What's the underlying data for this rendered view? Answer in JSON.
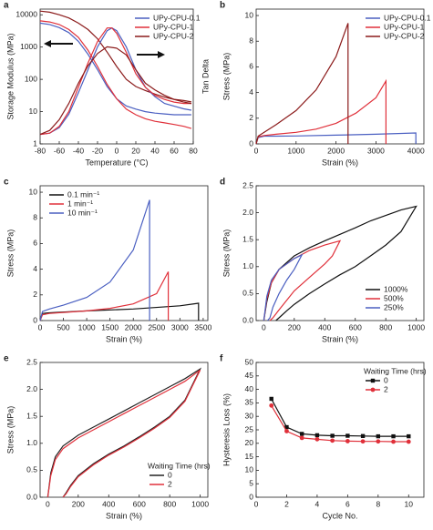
{
  "chart_data": [
    {
      "type": "line",
      "label": "a",
      "xlabel": "Temperature (°C)",
      "ylabel": "Storage Modulus (MPa)",
      "y2label": "Tan Delta",
      "xlim": [
        -80,
        80
      ],
      "xticks": [
        -80,
        -60,
        -40,
        -20,
        0,
        20,
        40,
        60,
        80
      ],
      "ylim": [
        1,
        15000
      ],
      "yticks": [
        1,
        10,
        100,
        1000,
        10000
      ],
      "log": true,
      "y2lim": [
        0,
        1
      ],
      "legend": "upper right",
      "series": [
        {
          "name": "UPy-CPU-0.1",
          "color": "#4a5fc1",
          "x": [
            -80,
            -70,
            -60,
            -50,
            -40,
            -30,
            -20,
            -10,
            0,
            10,
            20,
            30,
            40,
            50,
            60,
            70,
            78
          ],
          "values": [
            5500,
            5000,
            4000,
            2800,
            1500,
            600,
            200,
            60,
            25,
            15,
            12,
            10,
            9,
            8.5,
            8,
            8,
            8
          ]
        },
        {
          "name": "UPy-CPU-1",
          "color": "#e0303a",
          "x": [
            -80,
            -70,
            -60,
            -50,
            -40,
            -30,
            -20,
            -10,
            0,
            10,
            20,
            30,
            40,
            50,
            60,
            70,
            78
          ],
          "values": [
            6500,
            6000,
            5000,
            3500,
            2000,
            800,
            250,
            70,
            25,
            12,
            8,
            6,
            5,
            4.5,
            4,
            3.5,
            3
          ]
        },
        {
          "name": "UPy-CPU-2",
          "color": "#8b1a1a",
          "x": [
            -80,
            -70,
            -60,
            -50,
            -40,
            -30,
            -20,
            -10,
            0,
            10,
            20,
            30,
            40,
            50,
            60,
            70,
            78
          ],
          "values": [
            13000,
            12000,
            10000,
            8000,
            5500,
            3500,
            1800,
            700,
            250,
            100,
            60,
            45,
            35,
            28,
            24,
            22,
            20
          ]
        },
        {
          "color": "#4a5fc1",
          "axis": "y2",
          "x": [
            -80,
            -70,
            -60,
            -50,
            -40,
            -30,
            -20,
            -10,
            -5,
            0,
            10,
            20,
            30,
            40,
            50,
            60,
            70,
            78
          ],
          "values": [
            0.07,
            0.08,
            0.12,
            0.22,
            0.38,
            0.55,
            0.72,
            0.84,
            0.86,
            0.84,
            0.72,
            0.55,
            0.42,
            0.35,
            0.3,
            0.28,
            0.26,
            0.25
          ]
        },
        {
          "color": "#e0303a",
          "axis": "y2",
          "x": [
            -80,
            -70,
            -60,
            -50,
            -40,
            -30,
            -20,
            -10,
            -5,
            0,
            10,
            20,
            30,
            40,
            50,
            60,
            70,
            78
          ],
          "values": [
            0.07,
            0.08,
            0.13,
            0.24,
            0.42,
            0.6,
            0.76,
            0.86,
            0.86,
            0.82,
            0.68,
            0.52,
            0.42,
            0.36,
            0.33,
            0.31,
            0.3,
            0.3
          ]
        },
        {
          "color": "#8b1a1a",
          "axis": "y2",
          "x": [
            -80,
            -70,
            -60,
            -50,
            -40,
            -30,
            -20,
            -10,
            0,
            10,
            20,
            30,
            40,
            50,
            60,
            70,
            78
          ],
          "values": [
            0.07,
            0.1,
            0.18,
            0.3,
            0.45,
            0.58,
            0.67,
            0.72,
            0.71,
            0.66,
            0.55,
            0.45,
            0.4,
            0.36,
            0.33,
            0.31,
            0.3
          ]
        }
      ]
    },
    {
      "type": "line",
      "label": "b",
      "xlabel": "Strain (%)",
      "ylabel": "Stress (MPa)",
      "xlim": [
        0,
        4200
      ],
      "xticks": [
        0,
        1000,
        2000,
        3000,
        4000
      ],
      "ylim": [
        0,
        10.5
      ],
      "yticks": [
        0,
        2,
        4,
        6,
        8,
        10
      ],
      "legend": "upper right",
      "series": [
        {
          "name": "UPy-CPU-0.1",
          "color": "#4a5fc1",
          "x": [
            0,
            50,
            200,
            500,
            1000,
            2000,
            3000,
            4000,
            4000
          ],
          "values": [
            0,
            0.5,
            0.6,
            0.6,
            0.62,
            0.68,
            0.75,
            0.85,
            0
          ]
        },
        {
          "name": "UPy-CPU-1",
          "color": "#e0303a",
          "x": [
            0,
            50,
            200,
            500,
            1000,
            1500,
            2000,
            2500,
            3000,
            3250,
            3250
          ],
          "values": [
            0,
            0.55,
            0.65,
            0.75,
            0.9,
            1.15,
            1.6,
            2.4,
            3.6,
            4.9,
            0
          ]
        },
        {
          "name": "UPy-CPU-2",
          "color": "#8b1a1a",
          "x": [
            0,
            50,
            200,
            500,
            1000,
            1500,
            2000,
            2300,
            2300
          ],
          "values": [
            0,
            0.6,
            0.9,
            1.5,
            2.6,
            4.2,
            6.8,
            9.4,
            0
          ]
        }
      ]
    },
    {
      "type": "line",
      "label": "c",
      "xlabel": "Strain (%)",
      "ylabel": "Stress (MPa)",
      "xlim": [
        0,
        3600
      ],
      "xticks": [
        0,
        500,
        1000,
        1500,
        2000,
        2500,
        3000,
        3500
      ],
      "ylim": [
        0,
        10.5
      ],
      "yticks": [
        0,
        2,
        4,
        6,
        8,
        10
      ],
      "legend": "upper left",
      "series": [
        {
          "name": "0.1 min⁻¹",
          "color": "#111111",
          "x": [
            0,
            50,
            200,
            1000,
            2000,
            3000,
            3400,
            3400
          ],
          "values": [
            0,
            0.55,
            0.6,
            0.75,
            0.9,
            1.15,
            1.35,
            0
          ]
        },
        {
          "name": "1 min⁻¹",
          "color": "#e0303a",
          "x": [
            0,
            50,
            200,
            1000,
            1500,
            2000,
            2500,
            2750,
            2750
          ],
          "values": [
            0,
            0.45,
            0.55,
            0.75,
            0.95,
            1.3,
            2.1,
            3.8,
            0
          ]
        },
        {
          "name": "10 min⁻¹",
          "color": "#4a5fc1",
          "x": [
            0,
            50,
            200,
            500,
            1000,
            1500,
            2000,
            2350,
            2350
          ],
          "values": [
            0,
            0.7,
            0.9,
            1.2,
            1.8,
            3.0,
            5.5,
            9.4,
            0
          ]
        }
      ]
    },
    {
      "type": "line",
      "label": "d",
      "xlabel": "Strain (%)",
      "ylabel": "Stress (MPa)",
      "xlim": [
        -50,
        1050
      ],
      "xticks": [
        0,
        200,
        400,
        600,
        800,
        1000
      ],
      "ylim": [
        0,
        2.5
      ],
      "yticks": [
        {
          "value": 0,
          "label": "0.0"
        },
        0.5,
        {
          "value": 1,
          "label": "1.0"
        },
        1.5,
        {
          "value": 2,
          "label": "2.0"
        },
        2.5
      ],
      "legend": "lower right",
      "series": [
        {
          "name": "1000%",
          "color": "#111111",
          "x": [
            0,
            20,
            50,
            100,
            200,
            300,
            400,
            500,
            600,
            700,
            800,
            900,
            1000,
            900,
            800,
            700,
            600,
            500,
            400,
            300,
            200,
            150,
            100,
            80
          ],
          "values": [
            0,
            0.35,
            0.7,
            0.95,
            1.2,
            1.35,
            1.48,
            1.6,
            1.72,
            1.85,
            1.95,
            2.05,
            2.12,
            1.65,
            1.4,
            1.2,
            1.0,
            0.85,
            0.68,
            0.5,
            0.3,
            0.18,
            0.05,
            0
          ]
        },
        {
          "name": "500%",
          "color": "#e0303a",
          "x": [
            0,
            20,
            50,
            100,
            200,
            300,
            400,
            500,
            450,
            400,
            300,
            200,
            100,
            60,
            40
          ],
          "values": [
            0,
            0.4,
            0.7,
            0.95,
            1.15,
            1.3,
            1.4,
            1.48,
            1.2,
            1.05,
            0.8,
            0.55,
            0.2,
            0.05,
            0
          ]
        },
        {
          "name": "250%",
          "color": "#4a5fc1",
          "x": [
            0,
            20,
            50,
            100,
            150,
            200,
            250,
            200,
            150,
            100,
            60,
            40,
            25
          ],
          "values": [
            0,
            0.45,
            0.75,
            0.95,
            1.05,
            1.15,
            1.22,
            0.95,
            0.75,
            0.5,
            0.25,
            0.05,
            0
          ]
        }
      ]
    },
    {
      "type": "line",
      "label": "e",
      "xlabel": "Strain (%)",
      "ylabel": "Stress (MPa)",
      "xlim": [
        -50,
        1050
      ],
      "xticks": [
        0,
        200,
        400,
        600,
        800,
        1000
      ],
      "ylim": [
        0,
        2.5
      ],
      "yticks": [
        {
          "value": 0,
          "label": "0.0"
        },
        0.5,
        {
          "value": 1,
          "label": "1.0"
        },
        1.5,
        {
          "value": 2,
          "label": "2.0"
        },
        2.5
      ],
      "legend": "lower right",
      "legend_title": "Waiting Time (hrs)",
      "series": [
        {
          "name": "0",
          "color": "#222222",
          "x": [
            0,
            20,
            50,
            100,
            200,
            300,
            400,
            500,
            600,
            700,
            800,
            900,
            1000,
            900,
            800,
            700,
            600,
            500,
            400,
            300,
            200,
            150,
            120,
            100
          ],
          "values": [
            0,
            0.45,
            0.75,
            0.95,
            1.15,
            1.3,
            1.45,
            1.6,
            1.75,
            1.9,
            2.05,
            2.2,
            2.38,
            1.8,
            1.5,
            1.3,
            1.12,
            0.95,
            0.8,
            0.62,
            0.4,
            0.22,
            0.08,
            0
          ]
        },
        {
          "name": "2",
          "color": "#e0303a",
          "x": [
            0,
            20,
            50,
            100,
            200,
            300,
            400,
            500,
            600,
            700,
            800,
            900,
            1000,
            900,
            800,
            700,
            600,
            500,
            400,
            300,
            200,
            150,
            120,
            100
          ],
          "values": [
            0,
            0.4,
            0.7,
            0.9,
            1.1,
            1.25,
            1.4,
            1.55,
            1.7,
            1.85,
            2.0,
            2.15,
            2.36,
            1.78,
            1.48,
            1.28,
            1.1,
            0.93,
            0.78,
            0.6,
            0.38,
            0.2,
            0.06,
            0
          ]
        }
      ]
    },
    {
      "type": "line",
      "label": "f",
      "xlabel": "Cycle No.",
      "ylabel": "Hysteresis Loss (%)",
      "xlim": [
        0,
        11
      ],
      "xticks": [
        0,
        2,
        4,
        6,
        8,
        10
      ],
      "ylim": [
        0,
        50
      ],
      "yticks": [
        0,
        5,
        10,
        15,
        20,
        25,
        30,
        35,
        40,
        45,
        50
      ],
      "legend": "upper right",
      "legend_title": "Waiting Time (hrs)",
      "series": [
        {
          "name": "0",
          "color": "#111111",
          "marker": "square",
          "x": [
            1,
            2,
            3,
            4,
            5,
            6,
            7,
            8,
            9,
            10
          ],
          "values": [
            36.5,
            26,
            23.5,
            23,
            22.8,
            22.8,
            22.7,
            22.6,
            22.6,
            22.6
          ]
        },
        {
          "name": "2",
          "color": "#e0303a",
          "marker": "circle",
          "x": [
            1,
            2,
            3,
            4,
            5,
            6,
            7,
            8,
            9,
            10
          ],
          "values": [
            34,
            24.5,
            22,
            21.5,
            21,
            20.8,
            20.7,
            20.7,
            20.6,
            20.6
          ]
        }
      ]
    }
  ]
}
